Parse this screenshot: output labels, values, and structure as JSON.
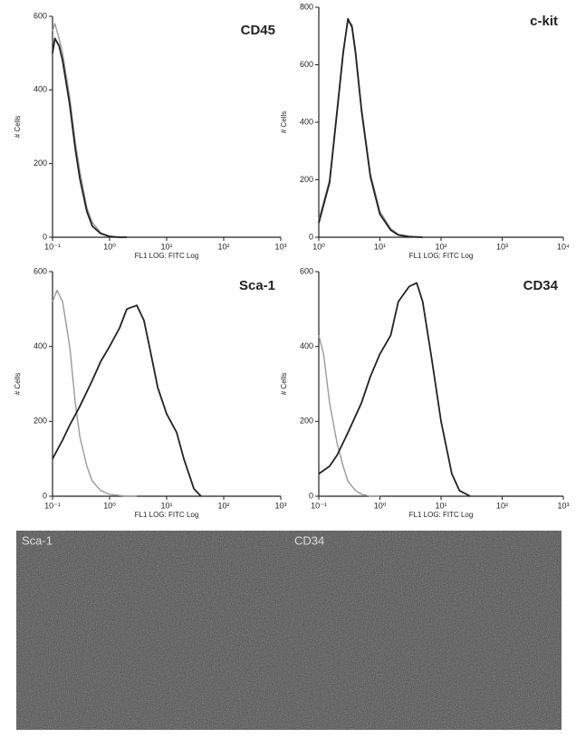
{
  "chart_data": [
    {
      "type": "line",
      "title": "CD45",
      "x_label": "FL1 LOG: FITC Log",
      "y_label": "# Cells",
      "xscale": "log",
      "xlim": [
        0.1,
        1000
      ],
      "xticks": [
        {
          "value": 0.1,
          "label": "10⁻¹"
        },
        {
          "value": 1,
          "label": "10⁰"
        },
        {
          "value": 10,
          "label": "10¹"
        },
        {
          "value": 100,
          "label": "10²"
        },
        {
          "value": 1000,
          "label": "10³"
        }
      ],
      "ylim": [
        0,
        600
      ],
      "yticks": [
        0,
        200,
        400,
        600
      ],
      "series": [
        {
          "color": "#9a9a9a",
          "x": [
            0.1,
            0.11,
            0.13,
            0.15,
            0.2,
            0.25,
            0.3,
            0.4,
            0.5,
            0.7,
            1,
            1.5,
            2
          ],
          "values": [
            560,
            580,
            540,
            500,
            380,
            260,
            180,
            80,
            40,
            12,
            3,
            0,
            0
          ]
        },
        {
          "color": "#222222",
          "x": [
            0.1,
            0.11,
            0.13,
            0.15,
            0.2,
            0.25,
            0.3,
            0.4,
            0.5,
            0.7,
            1,
            1.5,
            2
          ],
          "values": [
            500,
            540,
            520,
            480,
            360,
            240,
            160,
            70,
            30,
            10,
            2,
            0,
            0
          ]
        }
      ]
    },
    {
      "type": "line",
      "title": "c-kit",
      "x_label": "FL1 LOG: FITC Log",
      "y_label": "# Cells",
      "xscale": "log",
      "xlim": [
        1,
        10000
      ],
      "xticks": [
        {
          "value": 1,
          "label": "10⁰"
        },
        {
          "value": 10,
          "label": "10¹"
        },
        {
          "value": 100,
          "label": "10²"
        },
        {
          "value": 1000,
          "label": "10³"
        },
        {
          "value": 10000,
          "label": "10⁴"
        }
      ],
      "ylim": [
        0,
        800
      ],
      "yticks": [
        0,
        200,
        400,
        600,
        800
      ],
      "series": [
        {
          "color": "#9a9a9a",
          "x": [
            1,
            1.5,
            2,
            2.5,
            3,
            3.5,
            4,
            5,
            7,
            10,
            15,
            20,
            30,
            50
          ],
          "values": [
            60,
            200,
            450,
            650,
            750,
            740,
            650,
            450,
            220,
            90,
            30,
            10,
            3,
            0
          ]
        },
        {
          "color": "#222222",
          "x": [
            1,
            1.5,
            2,
            2.5,
            3,
            3.5,
            4,
            5,
            7,
            10,
            15,
            20,
            30,
            50
          ],
          "values": [
            50,
            190,
            440,
            640,
            760,
            730,
            640,
            440,
            210,
            80,
            25,
            8,
            2,
            0
          ]
        }
      ]
    },
    {
      "type": "line",
      "title": "Sca-1",
      "x_label": "FL1 LOG: FITC Log",
      "y_label": "# Cells",
      "xscale": "log",
      "xlim": [
        0.1,
        1000
      ],
      "xticks": [
        {
          "value": 0.1,
          "label": "10⁻¹"
        },
        {
          "value": 1,
          "label": "10⁰"
        },
        {
          "value": 10,
          "label": "10¹"
        },
        {
          "value": 100,
          "label": "10²"
        },
        {
          "value": 1000,
          "label": "10³"
        }
      ],
      "ylim": [
        0,
        600
      ],
      "yticks": [
        0,
        200,
        400,
        600
      ],
      "series": [
        {
          "color": "#9a9a9a",
          "x": [
            0.1,
            0.12,
            0.15,
            0.2,
            0.25,
            0.3,
            0.4,
            0.5,
            0.7,
            1,
            1.5,
            2,
            3
          ],
          "values": [
            520,
            550,
            520,
            400,
            250,
            160,
            80,
            40,
            15,
            5,
            2,
            0,
            0
          ]
        },
        {
          "color": "#222222",
          "x": [
            0.1,
            0.15,
            0.2,
            0.3,
            0.5,
            0.7,
            1,
            1.5,
            2,
            3,
            4,
            5,
            7,
            10,
            15,
            20,
            30,
            40
          ],
          "values": [
            100,
            150,
            190,
            240,
            310,
            360,
            400,
            450,
            500,
            510,
            470,
            400,
            290,
            220,
            170,
            100,
            20,
            0
          ]
        }
      ]
    },
    {
      "type": "line",
      "title": "CD34",
      "x_label": "FL1 LOG: FITC Log",
      "y_label": "# Cells",
      "xscale": "log",
      "xlim": [
        0.1,
        1000
      ],
      "xticks": [
        {
          "value": 0.1,
          "label": "10⁻¹"
        },
        {
          "value": 1,
          "label": "10⁰"
        },
        {
          "value": 10,
          "label": "10¹"
        },
        {
          "value": 100,
          "label": "10²"
        },
        {
          "value": 1000,
          "label": "10³"
        }
      ],
      "ylim": [
        0,
        600
      ],
      "yticks": [
        0,
        200,
        400,
        600
      ],
      "series": [
        {
          "color": "#9a9a9a",
          "x": [
            0.1,
            0.12,
            0.15,
            0.2,
            0.25,
            0.3,
            0.4,
            0.5,
            0.7,
            1
          ],
          "values": [
            430,
            380,
            250,
            140,
            80,
            40,
            15,
            5,
            0,
            0
          ]
        },
        {
          "color": "#222222",
          "x": [
            0.1,
            0.15,
            0.2,
            0.3,
            0.5,
            0.7,
            1,
            1.5,
            2,
            3,
            4,
            5,
            7,
            10,
            15,
            20,
            30
          ],
          "values": [
            60,
            80,
            110,
            170,
            250,
            320,
            380,
            430,
            520,
            560,
            570,
            520,
            370,
            200,
            60,
            15,
            0
          ]
        }
      ]
    }
  ],
  "image_panel": {
    "labels": [
      "Sca-1",
      "CD34"
    ]
  }
}
